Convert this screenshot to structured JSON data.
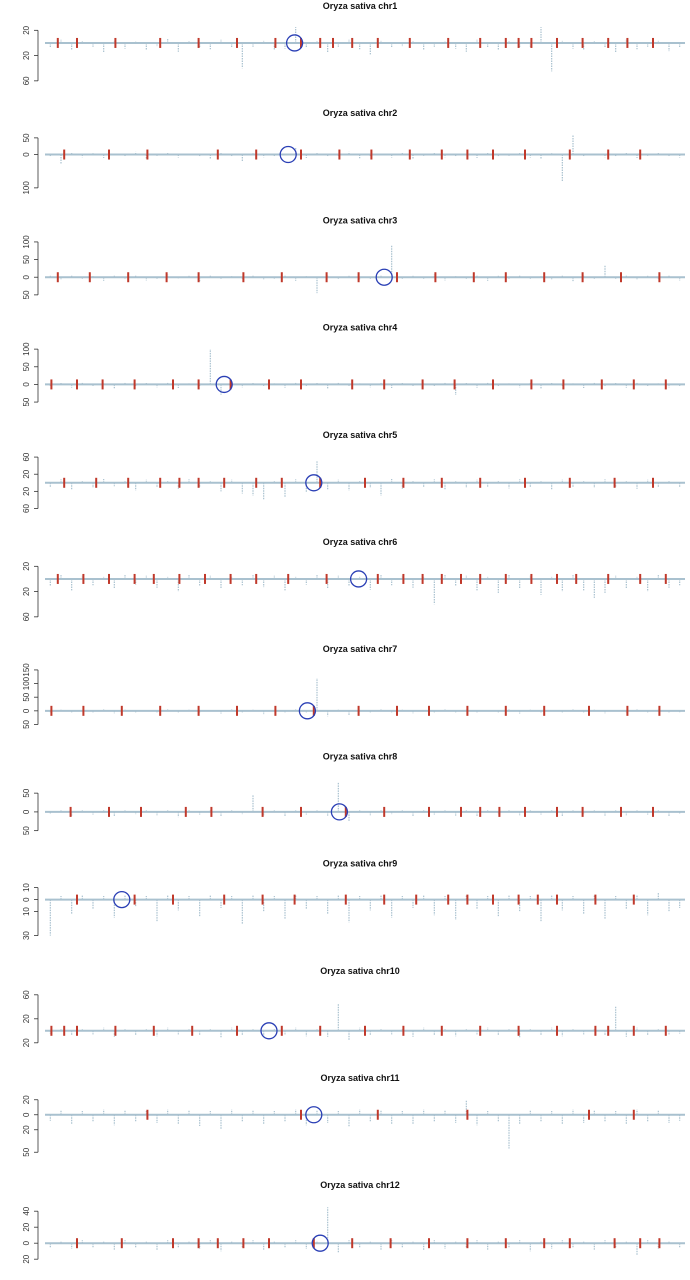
{
  "chart_data": [
    {
      "type": "stem",
      "title": "Oryza sativa chr1",
      "ylim": [
        -65,
        30
      ],
      "yticks": [
        20,
        {
          "value": -20,
          "label": "20"
        },
        {
          "value": -60,
          "label": "60"
        }
      ],
      "color": "#a9c1cf",
      "marker_color": "#c0392b",
      "circle_color": "#2a3fb5",
      "values": [
        -8,
        5,
        -12,
        3,
        -6,
        -15,
        4,
        -9,
        2,
        -11,
        -5,
        6,
        -14,
        3,
        -7,
        -10,
        5,
        -8,
        -40,
        -6,
        4,
        -12,
        -9,
        25,
        -7,
        3,
        -15,
        -6,
        5,
        -10,
        -18,
        4,
        -8,
        -5,
        3,
        -12,
        -6,
        2,
        -9,
        -14,
        5,
        -7,
        -11,
        3,
        -8,
        -6,
        25,
        -45,
        4,
        -9,
        -12,
        3,
        -7,
        -15,
        5,
        -10,
        -6,
        4,
        -13,
        -8
      ],
      "markers": [
        2,
        5,
        11,
        18,
        24,
        30,
        36,
        40,
        43,
        45,
        48,
        52,
        57,
        63,
        68,
        72,
        74,
        76,
        80,
        84,
        88,
        91,
        95
      ],
      "circle": 39
    },
    {
      "type": "stem",
      "title": "Oryza sativa chr2",
      "ylim": [
        -110,
        70
      ],
      "yticks": [
        50,
        0,
        {
          "value": -100,
          "label": "100"
        }
      ],
      "color": "#a9c1cf",
      "marker_color": "#c0392b",
      "circle_color": "#2a3fb5",
      "values": [
        -5,
        -30,
        6,
        -8,
        4,
        -10,
        3,
        -6,
        8,
        -12,
        -4,
        5,
        -9,
        3,
        -7,
        -14,
        6,
        -5,
        -20,
        4,
        -8,
        -6,
        3,
        20,
        -10,
        5,
        -7,
        -4,
        8,
        -11,
        -6,
        3,
        -9,
        5,
        -13,
        -4,
        6,
        -8,
        -5,
        3,
        -10,
        7,
        -6,
        -4,
        5,
        -9,
        -12,
        4,
        -80,
        60,
        -6,
        3,
        -8,
        -5,
        6,
        -10,
        -4,
        5,
        -7,
        -9
      ],
      "markers": [
        3,
        10,
        16,
        27,
        33,
        40,
        46,
        51,
        57,
        62,
        66,
        70,
        75,
        82,
        88,
        93
      ],
      "circle": 38
    },
    {
      "type": "stem",
      "title": "Oryza sativa chr3",
      "ylim": [
        -60,
        110
      ],
      "yticks": [
        100,
        50,
        0,
        {
          "value": -50,
          "label": "50"
        }
      ],
      "color": "#a9c1cf",
      "marker_color": "#c0392b",
      "circle_color": "#2a3fb5",
      "values": [
        4,
        -8,
        6,
        -5,
        3,
        -10,
        7,
        -4,
        5,
        -9,
        -6,
        8,
        -3,
        4,
        -12,
        6,
        -5,
        3,
        -7,
        5,
        -8,
        -4,
        6,
        -10,
        3,
        -45,
        5,
        -6,
        4,
        -8,
        -5,
        6,
        90,
        -7,
        4,
        -5,
        8,
        -9,
        3,
        -6,
        5,
        -10,
        4,
        -7,
        6,
        -5,
        3,
        -8,
        5,
        -11,
        4,
        -6,
        35,
        -5,
        7,
        -8,
        4,
        -6,
        5,
        -9
      ],
      "markers": [
        2,
        7,
        13,
        19,
        24,
        31,
        37,
        44,
        49,
        55,
        61,
        67,
        72,
        78,
        84,
        90,
        96
      ],
      "circle": 53
    },
    {
      "type": "stem",
      "title": "Oryza sativa chr4",
      "ylim": [
        -60,
        110
      ],
      "yticks": [
        100,
        50,
        0,
        {
          "value": -50,
          "label": "50"
        }
      ],
      "color": "#a9c1cf",
      "marker_color": "#c0392b",
      "circle_color": "#2a3fb5",
      "values": [
        -6,
        4,
        -9,
        6,
        -5,
        3,
        -11,
        5,
        -7,
        4,
        -8,
        6,
        -10,
        3,
        -6,
        100,
        -30,
        5,
        -8,
        4,
        -6,
        3,
        -9,
        5,
        -7,
        4,
        -12,
        6,
        -5,
        3,
        -8,
        5,
        -10,
        4,
        -6,
        3,
        -7,
        5,
        -30,
        4,
        -9,
        6,
        -5,
        3,
        -8,
        5,
        -14,
        4,
        -6,
        3,
        -10,
        5,
        -7,
        4,
        -9,
        6,
        -5,
        3,
        -8,
        -6
      ],
      "markers": [
        1,
        5,
        9,
        14,
        20,
        24,
        29,
        35,
        40,
        48,
        53,
        59,
        64,
        70,
        76,
        81,
        87,
        92,
        97
      ],
      "circle": 28
    },
    {
      "type": "stem",
      "title": "Oryza sativa chr5",
      "ylim": [
        -70,
        70
      ],
      "yticks": [
        60,
        20,
        {
          "value": -20,
          "label": "20"
        },
        {
          "value": -60,
          "label": "60"
        }
      ],
      "color": "#a9c1cf",
      "marker_color": "#c0392b",
      "circle_color": "#2a3fb5",
      "values": [
        -10,
        8,
        -15,
        6,
        -12,
        9,
        -8,
        5,
        -18,
        7,
        -11,
        6,
        -14,
        8,
        -9,
        5,
        -20,
        7,
        -25,
        -30,
        -40,
        6,
        -35,
        8,
        -22,
        50,
        -15,
        7,
        -18,
        6,
        -12,
        -30,
        9,
        -14,
        6,
        -10,
        8,
        -16,
        5,
        -12,
        7,
        -9,
        6,
        -13,
        8,
        -11,
        5,
        -15,
        7,
        -10,
        6,
        -12,
        8,
        -9,
        5,
        -14,
        7,
        -11,
        6,
        -10
      ],
      "markers": [
        3,
        8,
        13,
        18,
        21,
        24,
        28,
        33,
        37,
        43,
        50,
        56,
        62,
        68,
        75,
        82,
        89,
        95
      ],
      "circle": 42
    },
    {
      "type": "stem",
      "title": "Oryza sativa chr6",
      "ylim": [
        -65,
        30
      ],
      "yticks": [
        20,
        {
          "value": -20,
          "label": "20"
        },
        {
          "value": -60,
          "label": "60"
        }
      ],
      "color": "#a9c1cf",
      "marker_color": "#c0392b",
      "circle_color": "#2a3fb5",
      "values": [
        -12,
        6,
        -18,
        5,
        -10,
        4,
        -15,
        6,
        -9,
        5,
        -14,
        4,
        -20,
        6,
        -11,
        5,
        -16,
        4,
        -10,
        6,
        -13,
        5,
        -18,
        4,
        -9,
        6,
        -15,
        5,
        -12,
        4,
        -17,
        6,
        -10,
        5,
        -14,
        4,
        -40,
        6,
        -12,
        5,
        -18,
        4,
        -22,
        6,
        -15,
        5,
        -25,
        4,
        -20,
        6,
        -18,
        -30,
        -22,
        5,
        -16,
        4,
        -20,
        6,
        -14,
        -10
      ],
      "markers": [
        2,
        6,
        10,
        14,
        17,
        21,
        25,
        29,
        33,
        38,
        44,
        52,
        56,
        59,
        62,
        65,
        68,
        72,
        76,
        80,
        83,
        88,
        93,
        97
      ],
      "circle": 49
    },
    {
      "type": "stem",
      "title": "Oryza sativa chr7",
      "ylim": [
        -60,
        160
      ],
      "yticks": [
        150,
        100,
        50,
        0,
        {
          "value": -50,
          "label": "50"
        }
      ],
      "color": "#a9c1cf",
      "marker_color": "#c0392b",
      "circle_color": "#2a3fb5",
      "values": [
        -5,
        4,
        -8,
        3,
        -6,
        5,
        -10,
        4,
        -7,
        3,
        -9,
        5,
        -6,
        4,
        -8,
        3,
        -11,
        5,
        -7,
        4,
        -12,
        3,
        -6,
        5,
        -9,
        120,
        -20,
        4,
        -15,
        3,
        -8,
        5,
        -6,
        4,
        -10,
        3,
        -7,
        5,
        -9,
        4,
        -6,
        3,
        -8,
        5,
        -11,
        4,
        -7,
        3,
        -9,
        5,
        -6,
        4,
        -10,
        3,
        -8,
        5,
        -7,
        4,
        -6,
        -5
      ],
      "markers": [
        1,
        6,
        12,
        18,
        24,
        30,
        36,
        42,
        49,
        55,
        60,
        66,
        72,
        78,
        85,
        91,
        96
      ],
      "circle": 41
    },
    {
      "type": "stem",
      "title": "Oryza sativa chr8",
      "ylim": [
        -60,
        100
      ],
      "yticks": [
        50,
        0,
        {
          "value": -50,
          "label": "50"
        }
      ],
      "color": "#a9c1cf",
      "marker_color": "#c0392b",
      "circle_color": "#2a3fb5",
      "values": [
        -6,
        5,
        -10,
        4,
        -8,
        6,
        -12,
        5,
        -7,
        4,
        -9,
        6,
        -14,
        5,
        -8,
        4,
        -11,
        6,
        -7,
        45,
        -9,
        4,
        -12,
        6,
        -8,
        5,
        -10,
        80,
        -25,
        6,
        -9,
        5,
        -7,
        4,
        -11,
        6,
        -8,
        5,
        -10,
        4,
        -13,
        6,
        -7,
        5,
        -9,
        4,
        -8,
        6,
        -12,
        5,
        -7,
        4,
        -10,
        6,
        -9,
        5,
        -8,
        4,
        -11,
        -6
      ],
      "markers": [
        4,
        10,
        15,
        22,
        26,
        34,
        40,
        47,
        53,
        60,
        65,
        68,
        71,
        75,
        80,
        84,
        90,
        95
      ],
      "circle": 46
    },
    {
      "type": "stem",
      "title": "Oryza sativa chr9",
      "ylim": [
        -35,
        15
      ],
      "yticks": [
        10,
        0,
        {
          "value": -10,
          "label": "10"
        },
        {
          "value": -30,
          "label": "30"
        }
      ],
      "color": "#a9c1cf",
      "marker_color": "#c0392b",
      "circle_color": "#2a3fb5",
      "values": [
        -30,
        3,
        -12,
        4,
        -8,
        3,
        -15,
        4,
        -6,
        3,
        -18,
        4,
        -9,
        3,
        -14,
        4,
        -7,
        3,
        -20,
        4,
        -10,
        3,
        -16,
        4,
        -8,
        3,
        -12,
        4,
        -19,
        3,
        -9,
        4,
        -15,
        3,
        -7,
        4,
        -13,
        3,
        -17,
        4,
        -8,
        3,
        -14,
        4,
        -10,
        3,
        -18,
        4,
        -9,
        3,
        -12,
        4,
        -16,
        3,
        -8,
        4,
        -13,
        6,
        -10,
        -7
      ],
      "markers": [
        5,
        14,
        20,
        28,
        34,
        39,
        47,
        53,
        58,
        63,
        66,
        70,
        74,
        77,
        80,
        86,
        92
      ],
      "circle": 12
    },
    {
      "type": "stem",
      "title": "Oryza sativa chr10",
      "ylim": [
        -30,
        70
      ],
      "yticks": [
        60,
        20,
        {
          "value": -20,
          "label": "20"
        }
      ],
      "color": "#a9c1cf",
      "marker_color": "#c0392b",
      "circle_color": "#2a3fb5",
      "values": [
        -5,
        4,
        -8,
        3,
        -6,
        5,
        -10,
        4,
        -7,
        3,
        -9,
        5,
        -6,
        4,
        -8,
        3,
        -11,
        5,
        -7,
        4,
        -12,
        3,
        -6,
        5,
        -9,
        4,
        -10,
        45,
        -15,
        5,
        -8,
        4,
        -6,
        3,
        -10,
        5,
        -7,
        4,
        -9,
        3,
        -6,
        5,
        -8,
        4,
        -11,
        3,
        -7,
        5,
        -9,
        4,
        -6,
        3,
        -8,
        40,
        -10,
        5,
        -7,
        4,
        -6,
        -5
      ],
      "markers": [
        1,
        3,
        5,
        11,
        17,
        23,
        30,
        37,
        43,
        50,
        56,
        62,
        68,
        74,
        80,
        86,
        88,
        92,
        97
      ],
      "circle": 35
    },
    {
      "type": "stem",
      "title": "Oryza sativa chr11",
      "ylim": [
        -55,
        25
      ],
      "yticks": [
        20,
        0,
        {
          "value": -20,
          "label": "20"
        },
        {
          "value": -50,
          "label": "50"
        }
      ],
      "color": "#a9c1cf",
      "marker_color": "#c0392b",
      "circle_color": "#2a3fb5",
      "values": [
        -8,
        6,
        -12,
        5,
        -10,
        7,
        -14,
        6,
        -9,
        5,
        -11,
        7,
        -13,
        6,
        -15,
        5,
        -20,
        7,
        -10,
        6,
        -12,
        5,
        -9,
        7,
        -14,
        6,
        -11,
        5,
        -16,
        7,
        -10,
        6,
        -13,
        5,
        -12,
        7,
        -9,
        6,
        -11,
        20,
        -14,
        5,
        -10,
        -45,
        -12,
        6,
        -9,
        5,
        -13,
        7,
        -11,
        6,
        -10,
        5,
        -12,
        7,
        -9,
        6,
        -11,
        -8
      ],
      "markers": [
        16,
        40,
        52,
        66,
        85,
        92
      ],
      "circle": 42
    },
    {
      "type": "stem",
      "title": "Oryza sativa chr12",
      "ylim": [
        -25,
        50
      ],
      "yticks": [
        40,
        20,
        0,
        {
          "value": -20,
          "label": "20"
        }
      ],
      "color": "#a9c1cf",
      "marker_color": "#c0392b",
      "circle_color": "#2a3fb5",
      "values": [
        -5,
        3,
        -7,
        4,
        -6,
        3,
        -8,
        4,
        -5,
        3,
        -9,
        4,
        -6,
        3,
        -7,
        4,
        -10,
        3,
        -6,
        4,
        -8,
        3,
        -5,
        4,
        -7,
        3,
        45,
        -12,
        4,
        -6,
        3,
        -8,
        4,
        -5,
        3,
        -9,
        4,
        -7,
        3,
        -6,
        4,
        -8,
        3,
        -5,
        4,
        -10,
        3,
        -7,
        4,
        -6,
        3,
        -8,
        4,
        -5,
        3,
        -15,
        4,
        -7,
        3,
        -6
      ],
      "markers": [
        5,
        12,
        20,
        24,
        27,
        31,
        35,
        42,
        48,
        54,
        60,
        66,
        72,
        78,
        82,
        89,
        93,
        96
      ],
      "circle": 43
    }
  ]
}
